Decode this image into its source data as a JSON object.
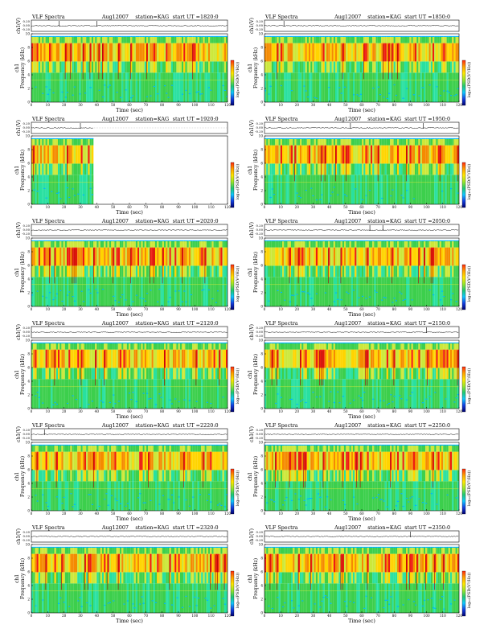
{
  "page": {
    "header_title": "VLF Spectra",
    "header_date": "Aug12007",
    "header_station": "station=KAG",
    "header_start_prefix": "start  UT =",
    "amp_label": "ch1(V)",
    "freq_label": "Frequency  (kHz)",
    "freq_label_prefix": "ch1",
    "time_label": "Time  (sec)",
    "colorbar_label": "log₁₀(PSD(V²/Hz))"
  },
  "colors": {
    "spectrogram": [
      "#1a2ce0",
      "#00b4ff",
      "#28e0a0",
      "#3ccf4c",
      "#cce83a",
      "#ffd400",
      "#f58a00",
      "#ee1c10",
      "#a00000",
      "#3a0000"
    ],
    "colorbar": [
      "#ff2a10",
      "#ffa000",
      "#ffe600",
      "#9be62a",
      "#20c870",
      "#10c8ff",
      "#1440e0",
      "#000070"
    ]
  },
  "chart_data": [
    {
      "type": "heatmap",
      "start_ut": "1820:0",
      "x_end": 120,
      "xlim": [
        0,
        120
      ],
      "ylim": [
        0,
        10
      ],
      "x_ticks": [
        0,
        10,
        20,
        30,
        40,
        50,
        60,
        70,
        80,
        90,
        100,
        110,
        120
      ],
      "y_ticks": [
        0,
        2,
        4,
        6,
        8,
        10
      ],
      "amp_ticks": [
        "0.20",
        "0.00",
        "-0.20"
      ],
      "spikes": [
        17,
        40
      ]
    },
    {
      "type": "heatmap",
      "start_ut": "1850:0",
      "x_end": 120,
      "xlim": [
        0,
        120
      ],
      "ylim": [
        0,
        10
      ],
      "x_ticks": [
        0,
        10,
        20,
        30,
        40,
        50,
        60,
        70,
        80,
        90,
        100,
        110,
        120
      ],
      "y_ticks": [
        0,
        2,
        4,
        6,
        8,
        10
      ],
      "amp_ticks": [
        "0.20",
        "0.00",
        "-0.20"
      ],
      "spikes": [
        12
      ]
    },
    {
      "type": "heatmap",
      "start_ut": "1920:0",
      "x_end": 38,
      "xlim": [
        0,
        120
      ],
      "ylim": [
        0,
        10
      ],
      "x_ticks": [
        0,
        10,
        20,
        30,
        40,
        50,
        60,
        70,
        80,
        90,
        100,
        110,
        120
      ],
      "y_ticks": [
        0,
        2,
        4,
        6,
        8,
        10
      ],
      "amp_ticks": [
        "0.20",
        "0.00",
        "-0.20"
      ],
      "spikes": [
        30
      ]
    },
    {
      "type": "heatmap",
      "start_ut": "1950:0",
      "x_end": 120,
      "xlim": [
        0,
        120
      ],
      "ylim": [
        0,
        10
      ],
      "x_ticks": [
        0,
        10,
        20,
        30,
        40,
        50,
        60,
        70,
        80,
        90,
        100,
        110,
        120
      ],
      "y_ticks": [
        0,
        2,
        4,
        6,
        8,
        10
      ],
      "amp_ticks": [
        "0.20",
        "0.00",
        "-0.20"
      ],
      "spikes": [
        53,
        98
      ]
    },
    {
      "type": "heatmap",
      "start_ut": "2020:0",
      "x_end": 120,
      "xlim": [
        0,
        120
      ],
      "ylim": [
        0,
        10
      ],
      "x_ticks": [
        0,
        10,
        20,
        30,
        40,
        50,
        60,
        70,
        80,
        90,
        100,
        110,
        120
      ],
      "y_ticks": [
        0,
        2,
        4,
        6,
        8,
        10
      ],
      "amp_ticks": [
        "0.20",
        "0.00",
        "-0.20"
      ],
      "spikes": []
    },
    {
      "type": "heatmap",
      "start_ut": "2050:0",
      "x_end": 120,
      "xlim": [
        0,
        120
      ],
      "ylim": [
        0,
        10
      ],
      "x_ticks": [
        0,
        10,
        20,
        30,
        40,
        50,
        60,
        70,
        80,
        90,
        100,
        110,
        120
      ],
      "y_ticks": [
        0,
        2,
        4,
        6,
        8,
        10
      ],
      "amp_ticks": [
        "0.20",
        "0.00",
        "-0.20"
      ],
      "spikes": [
        65,
        73
      ]
    },
    {
      "type": "heatmap",
      "start_ut": "2120:0",
      "x_end": 120,
      "xlim": [
        0,
        120
      ],
      "ylim": [
        0,
        10
      ],
      "x_ticks": [
        0,
        10,
        20,
        30,
        40,
        50,
        60,
        70,
        80,
        90,
        100,
        110,
        120
      ],
      "y_ticks": [
        0,
        2,
        4,
        6,
        8,
        10
      ],
      "amp_ticks": [
        "0.20",
        "0.00",
        "-0.20"
      ],
      "spikes": []
    },
    {
      "type": "heatmap",
      "start_ut": "2150:0",
      "x_end": 120,
      "xlim": [
        0,
        120
      ],
      "ylim": [
        0,
        10
      ],
      "x_ticks": [
        0,
        10,
        20,
        30,
        40,
        50,
        60,
        70,
        80,
        90,
        100,
        110,
        120
      ],
      "y_ticks": [
        0,
        2,
        4,
        6,
        8,
        10
      ],
      "amp_ticks": [
        "0.20",
        "0.00",
        "-0.20"
      ],
      "spikes": [
        100
      ]
    },
    {
      "type": "heatmap",
      "start_ut": "2220:0",
      "x_end": 120,
      "xlim": [
        0,
        120
      ],
      "ylim": [
        0,
        10
      ],
      "x_ticks": [
        0,
        10,
        20,
        30,
        40,
        50,
        60,
        70,
        80,
        90,
        100,
        110,
        120
      ],
      "y_ticks": [
        0,
        2,
        4,
        6,
        8,
        10
      ],
      "amp_ticks": [
        "0.20",
        "0.00",
        "-0.20"
      ],
      "spikes": [
        8
      ]
    },
    {
      "type": "heatmap",
      "start_ut": "2250:0",
      "x_end": 120,
      "xlim": [
        0,
        120
      ],
      "ylim": [
        0,
        10
      ],
      "x_ticks": [
        0,
        10,
        20,
        30,
        40,
        50,
        60,
        70,
        80,
        90,
        100,
        110,
        120
      ],
      "y_ticks": [
        0,
        2,
        4,
        6,
        8,
        10
      ],
      "amp_ticks": [
        "0.20",
        "0.00",
        "-0.20"
      ],
      "spikes": []
    },
    {
      "type": "heatmap",
      "start_ut": "2320:0",
      "x_end": 120,
      "xlim": [
        0,
        120
      ],
      "ylim": [
        0,
        10
      ],
      "x_ticks": [
        0,
        10,
        20,
        30,
        40,
        50,
        60,
        70,
        80,
        90,
        100,
        110,
        120
      ],
      "y_ticks": [
        0,
        2,
        4,
        6,
        8,
        10
      ],
      "amp_ticks": [
        "0.20",
        "0.00",
        "-0.20"
      ],
      "spikes": []
    },
    {
      "type": "heatmap",
      "start_ut": "2350:0",
      "x_end": 120,
      "xlim": [
        0,
        120
      ],
      "ylim": [
        0,
        10
      ],
      "x_ticks": [
        0,
        10,
        20,
        30,
        40,
        50,
        60,
        70,
        80,
        90,
        100,
        110,
        120
      ],
      "y_ticks": [
        0,
        2,
        4,
        6,
        8,
        10
      ],
      "amp_ticks": [
        "0.20",
        "0.00",
        "-0.20"
      ],
      "spikes": [
        90
      ]
    }
  ]
}
